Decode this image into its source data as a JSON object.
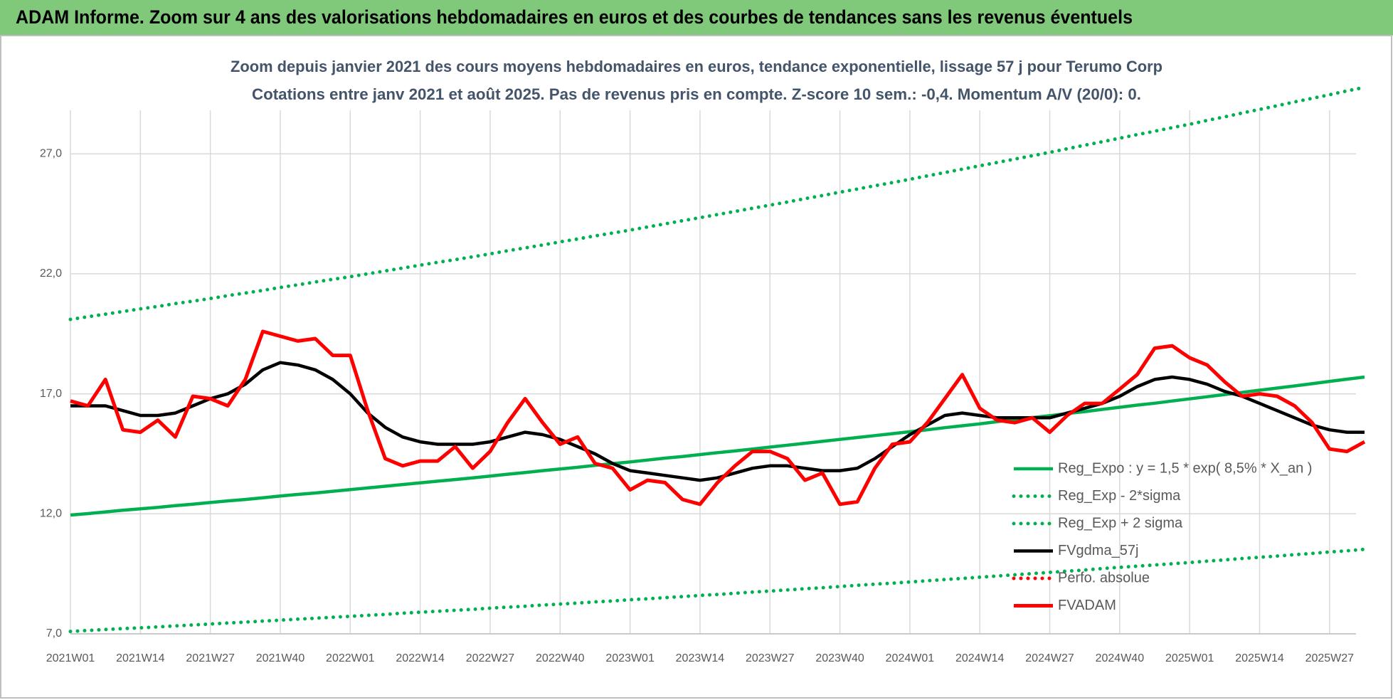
{
  "header": {
    "title": "ADAM Informe. Zoom sur 4 ans des valorisations hebdomadaires en euros et des courbes de tendances sans les revenus éventuels"
  },
  "chart_data": {
    "type": "line",
    "title": "Zoom depuis janvier 2021 des cours moyens hebdomadaires en euros, tendance exponentielle, lissage 57 j pour Terumo Corp",
    "subtitle": "Cotations entre janv 2021 et août 2025.  Pas de revenus pris en compte. Z-score 10 sem.: -0,4. Momentum A/V (20/0): 0.",
    "categories": [
      "2021W01",
      null,
      null,
      null,
      "2021W14",
      null,
      null,
      null,
      "2021W27",
      null,
      null,
      null,
      "2021W40",
      null,
      null,
      null,
      "2022W01",
      null,
      null,
      null,
      "2022W14",
      null,
      null,
      null,
      "2022W27",
      null,
      null,
      null,
      "2022W40",
      null,
      null,
      null,
      "2023W01",
      null,
      null,
      null,
      "2023W14",
      null,
      null,
      null,
      "2023W27",
      null,
      null,
      null,
      "2023W40",
      null,
      null,
      null,
      "2024W01",
      null,
      null,
      null,
      "2024W14",
      null,
      null,
      null,
      "2024W27",
      null,
      null,
      null,
      "2024W40",
      null,
      null,
      null,
      "2025W01",
      null,
      null,
      null,
      "2025W14",
      null,
      null,
      null,
      "2025W27",
      null,
      null
    ],
    "ylim": [
      7,
      30
    ],
    "yticks": [
      {
        "value": 7,
        "label": "7,0"
      },
      {
        "value": 12,
        "label": "12,0"
      },
      {
        "value": 17,
        "label": "17,0"
      },
      {
        "value": 22,
        "label": "22,0"
      },
      {
        "value": 27,
        "label": "27,0"
      }
    ],
    "grid": true,
    "legend": "lower-right",
    "series": [
      {
        "name": "Reg_Expo : y = 1,5 * exp( 8,5% *  X_an )",
        "color": "#00b050",
        "dash": "solid",
        "values": [
          11.95,
          12.01,
          12.08,
          12.15,
          12.21,
          12.27,
          12.34,
          12.4,
          12.47,
          12.54,
          12.6,
          12.67,
          12.74,
          12.81,
          12.87,
          12.94,
          13.01,
          13.08,
          13.15,
          13.22,
          13.29,
          13.36,
          13.43,
          13.5,
          13.57,
          13.65,
          13.72,
          13.8,
          13.87,
          13.94,
          14.02,
          14.09,
          14.16,
          14.24,
          14.32,
          14.39,
          14.47,
          14.55,
          14.62,
          14.7,
          14.78,
          14.86,
          14.94,
          15.02,
          15.1,
          15.18,
          15.26,
          15.34,
          15.42,
          15.5,
          15.59,
          15.67,
          15.75,
          15.84,
          15.92,
          16.01,
          16.09,
          16.18,
          16.26,
          16.35,
          16.44,
          16.53,
          16.61,
          16.7,
          16.79,
          16.88,
          16.97,
          17.06,
          17.15,
          17.24,
          17.33,
          17.42,
          17.52,
          17.61,
          17.7
        ]
      },
      {
        "name": "Reg_Exp - 2*sigma",
        "color": "#00b050",
        "dash": "dotted",
        "values": [
          7.1,
          7.14,
          7.18,
          7.22,
          7.25,
          7.29,
          7.33,
          7.37,
          7.41,
          7.45,
          7.49,
          7.53,
          7.57,
          7.61,
          7.65,
          7.69,
          7.73,
          7.77,
          7.81,
          7.86,
          7.9,
          7.94,
          7.98,
          8.02,
          8.07,
          8.11,
          8.15,
          8.2,
          8.24,
          8.28,
          8.33,
          8.37,
          8.42,
          8.46,
          8.51,
          8.55,
          8.6,
          8.64,
          8.69,
          8.74,
          8.78,
          8.83,
          8.88,
          8.92,
          8.97,
          9.02,
          9.07,
          9.11,
          9.16,
          9.21,
          9.26,
          9.31,
          9.36,
          9.41,
          9.46,
          9.51,
          9.56,
          9.61,
          9.66,
          9.72,
          9.77,
          9.82,
          9.87,
          9.92,
          9.97,
          10.03,
          10.08,
          10.14,
          10.19,
          10.24,
          10.3,
          10.35,
          10.41,
          10.46,
          10.52
        ]
      },
      {
        "name": "Reg_Exp + 2 sigma",
        "color": "#00b050",
        "dash": "dotted",
        "values": [
          20.1,
          20.21,
          20.32,
          20.43,
          20.54,
          20.64,
          20.76,
          20.86,
          20.97,
          21.09,
          21.2,
          21.31,
          21.43,
          21.54,
          21.66,
          21.77,
          21.88,
          22.0,
          22.12,
          22.24,
          22.36,
          22.48,
          22.59,
          22.71,
          22.83,
          22.96,
          23.08,
          23.2,
          23.33,
          23.45,
          23.58,
          23.7,
          23.82,
          23.95,
          24.08,
          24.21,
          24.34,
          24.47,
          24.6,
          24.73,
          24.86,
          24.99,
          25.13,
          25.26,
          25.4,
          25.53,
          25.67,
          25.8,
          25.94,
          26.08,
          26.22,
          26.36,
          26.5,
          26.64,
          26.78,
          26.92,
          27.06,
          27.21,
          27.36,
          27.5,
          27.65,
          27.8,
          27.94,
          28.09,
          28.23,
          28.39,
          28.54,
          28.7,
          28.85,
          29.0,
          29.16,
          29.31,
          29.46,
          29.62,
          29.77
        ]
      },
      {
        "name": "FVgdma_57j",
        "color": "#000000",
        "dash": "solid",
        "values": [
          16.5,
          16.5,
          16.5,
          16.3,
          16.1,
          16.1,
          16.2,
          16.5,
          16.8,
          17.0,
          17.4,
          18.0,
          18.3,
          18.2,
          18.0,
          17.6,
          17.0,
          16.2,
          15.6,
          15.2,
          15.0,
          14.9,
          14.9,
          14.9,
          15.0,
          15.2,
          15.4,
          15.3,
          15.1,
          14.8,
          14.5,
          14.1,
          13.8,
          13.7,
          13.6,
          13.5,
          13.4,
          13.5,
          13.7,
          13.9,
          14.0,
          14.0,
          13.9,
          13.8,
          13.8,
          13.9,
          14.3,
          14.8,
          15.3,
          15.7,
          16.1,
          16.2,
          16.1,
          16.0,
          16.0,
          16.0,
          16.0,
          16.2,
          16.4,
          16.6,
          16.9,
          17.3,
          17.6,
          17.7,
          17.6,
          17.4,
          17.1,
          16.9,
          16.6,
          16.3,
          16.0,
          15.7,
          15.5,
          15.4,
          15.4
        ]
      },
      {
        "name": "Perfo. absolue",
        "color": "#ff0000",
        "dash": "dotted",
        "values": [
          null,
          null,
          null,
          null,
          null,
          null,
          null,
          null,
          null,
          null,
          null,
          null,
          null,
          null,
          null,
          null,
          null,
          null,
          null,
          null,
          null,
          null,
          null,
          null,
          null,
          null,
          null,
          null,
          null,
          null,
          null,
          null,
          null,
          null,
          null,
          null,
          null,
          null,
          null,
          null,
          null,
          null,
          null,
          null,
          null,
          null,
          null,
          null,
          null,
          null,
          null,
          null,
          null,
          null,
          null,
          null,
          null,
          null,
          null,
          null,
          null,
          null,
          null,
          null,
          null,
          null,
          null,
          null,
          null,
          null,
          null,
          null,
          null,
          null,
          null
        ]
      },
      {
        "name": "FVADAM",
        "color": "#ff0000",
        "dash": "solid",
        "values": [
          16.7,
          16.5,
          17.6,
          15.5,
          15.4,
          15.9,
          15.2,
          16.9,
          16.8,
          16.5,
          17.6,
          19.6,
          19.4,
          19.2,
          19.3,
          18.6,
          18.6,
          16.3,
          14.3,
          14.0,
          14.2,
          14.2,
          14.8,
          13.9,
          14.6,
          15.8,
          16.8,
          15.8,
          14.9,
          15.2,
          14.1,
          13.9,
          13.0,
          13.4,
          13.3,
          12.6,
          12.4,
          13.3,
          14.0,
          14.6,
          14.6,
          14.3,
          13.4,
          13.7,
          12.4,
          12.5,
          13.9,
          14.9,
          15.0,
          15.8,
          16.8,
          17.8,
          16.4,
          15.9,
          15.8,
          16.0,
          15.4,
          16.1,
          16.6,
          16.6,
          17.2,
          17.8,
          18.9,
          19.0,
          18.5,
          18.2,
          17.5,
          16.9,
          17.0,
          16.9,
          16.5,
          15.8,
          14.7,
          14.6,
          15.0
        ]
      }
    ]
  }
}
